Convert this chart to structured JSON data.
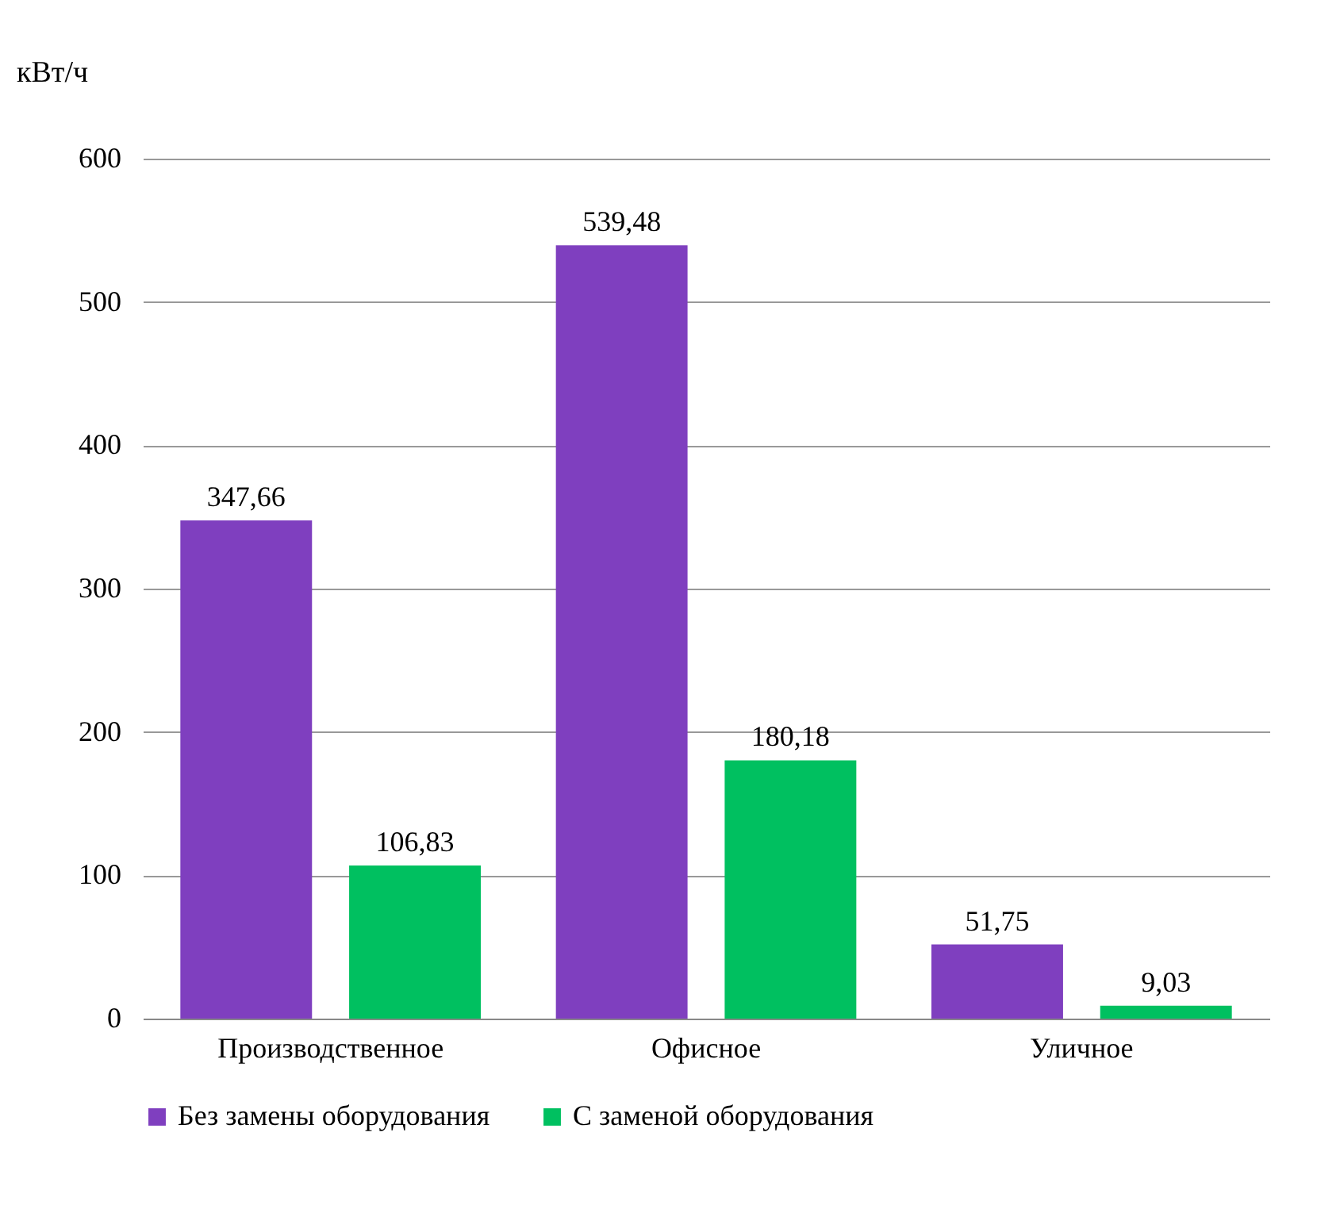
{
  "chart_data": {
    "type": "bar",
    "ylabel": "кВт/ч",
    "categories": [
      "Производственное",
      "Офисное",
      "Уличное"
    ],
    "series": [
      {
        "name": "Без замены оборудования",
        "color": "#7f3fbf",
        "values": [
          347.66,
          539.48,
          51.75
        ],
        "value_labels": [
          "347,66",
          "539,48",
          "51,75"
        ]
      },
      {
        "name": "С заменой оборудования",
        "color": "#00c060",
        "values": [
          106.83,
          180.18,
          9.03
        ],
        "value_labels": [
          "106,83",
          "180,18",
          "9,03"
        ]
      }
    ],
    "ylim": [
      0,
      600
    ],
    "yticks": [
      0,
      100,
      200,
      300,
      400,
      500,
      600
    ],
    "grid": "y",
    "legend": "bottom"
  }
}
